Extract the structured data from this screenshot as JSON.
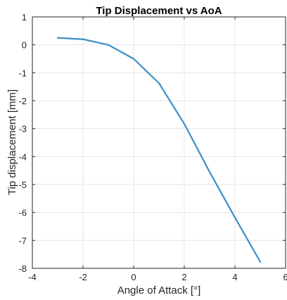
{
  "chart_data": {
    "type": "line",
    "title": "Tip Displacement vs AoA",
    "xlabel": "Angle of Attack [°]",
    "ylabel": "Tip displacement [mm]",
    "xlim": [
      -4,
      6
    ],
    "ylim": [
      -8,
      1
    ],
    "xticks": [
      -4,
      -2,
      0,
      2,
      4,
      6
    ],
    "yticks": [
      1,
      0,
      -1,
      -2,
      -3,
      -4,
      -5,
      -6,
      -7,
      -8
    ],
    "xtick_labels": [
      "-4",
      "-2",
      "0",
      "2",
      "4",
      "6"
    ],
    "ytick_labels": [
      "1",
      "0",
      "-1",
      "-2",
      "-3",
      "-4",
      "-5",
      "-6",
      "-7",
      "-8"
    ],
    "grid": true,
    "legend": "none",
    "series": [
      {
        "color": "#3a8fc9",
        "x": [
          -3,
          -2,
          -1,
          0,
          1,
          2,
          3,
          4,
          5
        ],
        "y": [
          0.25,
          0.2,
          0.0,
          -0.5,
          -1.37,
          -2.83,
          -4.55,
          -6.18,
          -7.77
        ]
      }
    ]
  }
}
